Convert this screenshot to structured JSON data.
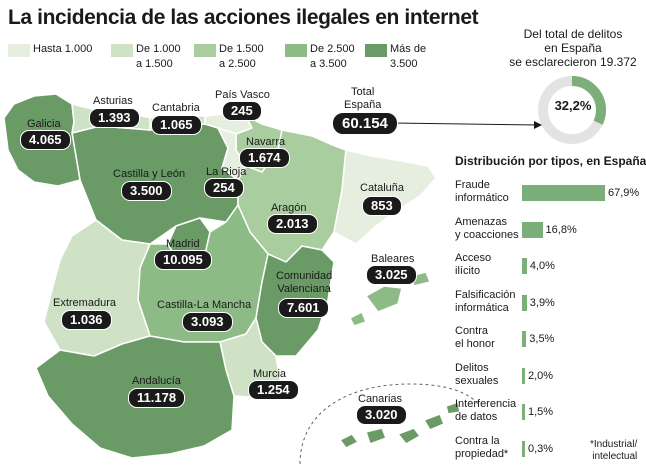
{
  "title": "La incidencia de las acciones ilegales en internet",
  "legend": [
    {
      "label": "Hasta 1.000",
      "color": "#e6efdf"
    },
    {
      "label": "De 1.000\na 1.500",
      "color": "#cfe2c6"
    },
    {
      "label": "De 1.500\na 2.500",
      "color": "#a9cd9f"
    },
    {
      "label": "De 2.500\na 3.500",
      "color": "#8dbb86"
    },
    {
      "label": "Más de\n3.500",
      "color": "#6a9b67"
    }
  ],
  "regions": [
    {
      "name": "Galicia",
      "value": "4.065"
    },
    {
      "name": "Asturias",
      "value": "1.393"
    },
    {
      "name": "Cantabria",
      "value": "1.065"
    },
    {
      "name": "País Vasco",
      "value": "245"
    },
    {
      "name": "Navarra",
      "value": "1.674"
    },
    {
      "name": "La Rioja",
      "value": "254"
    },
    {
      "name": "Castilla y León",
      "value": "3.500"
    },
    {
      "name": "Aragón",
      "value": "2.013"
    },
    {
      "name": "Cataluña",
      "value": "853"
    },
    {
      "name": "Madrid",
      "value": "10.095"
    },
    {
      "name": "Baleares",
      "value": "3.025"
    },
    {
      "name": "Comunidad\nValenciana",
      "value": "7.601"
    },
    {
      "name": "Extremadura",
      "value": "1.036"
    },
    {
      "name": "Castilla-La Mancha",
      "value": "3.093"
    },
    {
      "name": "Murcia",
      "value": "1.254"
    },
    {
      "name": "Andalucía",
      "value": "11.178"
    },
    {
      "name": "Canarias",
      "value": "3.020"
    }
  ],
  "total": {
    "label": "Total\nEspaña",
    "value": "60.154"
  },
  "cleared": {
    "heading": "Del total de delitos\nen España\nse esclarecieron 19.372",
    "percent_label": "32,2%",
    "fraction": 0.322,
    "color_filled": "#7cae79",
    "color_rest": "#e3e3e3"
  },
  "distribution": {
    "title": "Distribución por tipos, en España",
    "items": [
      {
        "label": "Fraude\ninformático",
        "value": 67.9,
        "value_label": "67,9%"
      },
      {
        "label": "Amenazas\ny coacciones",
        "value": 16.8,
        "value_label": "16,8%"
      },
      {
        "label": "Acceso\nilícito",
        "value": 4.0,
        "value_label": "4,0%"
      },
      {
        "label": "Falsificación\ninformática",
        "value": 3.9,
        "value_label": "3,9%"
      },
      {
        "label": "Contra\nel honor",
        "value": 3.5,
        "value_label": "3,5%"
      },
      {
        "label": "Delitos\nsexuales",
        "value": 2.0,
        "value_label": "2,0%"
      },
      {
        "label": "Interferencia\nde datos",
        "value": 1.5,
        "value_label": "1,5%"
      },
      {
        "label": "Contra la\npropiedad*",
        "value": 0.3,
        "value_label": "0,3%"
      }
    ]
  },
  "footnote": "*Industrial/\nintelectual"
}
